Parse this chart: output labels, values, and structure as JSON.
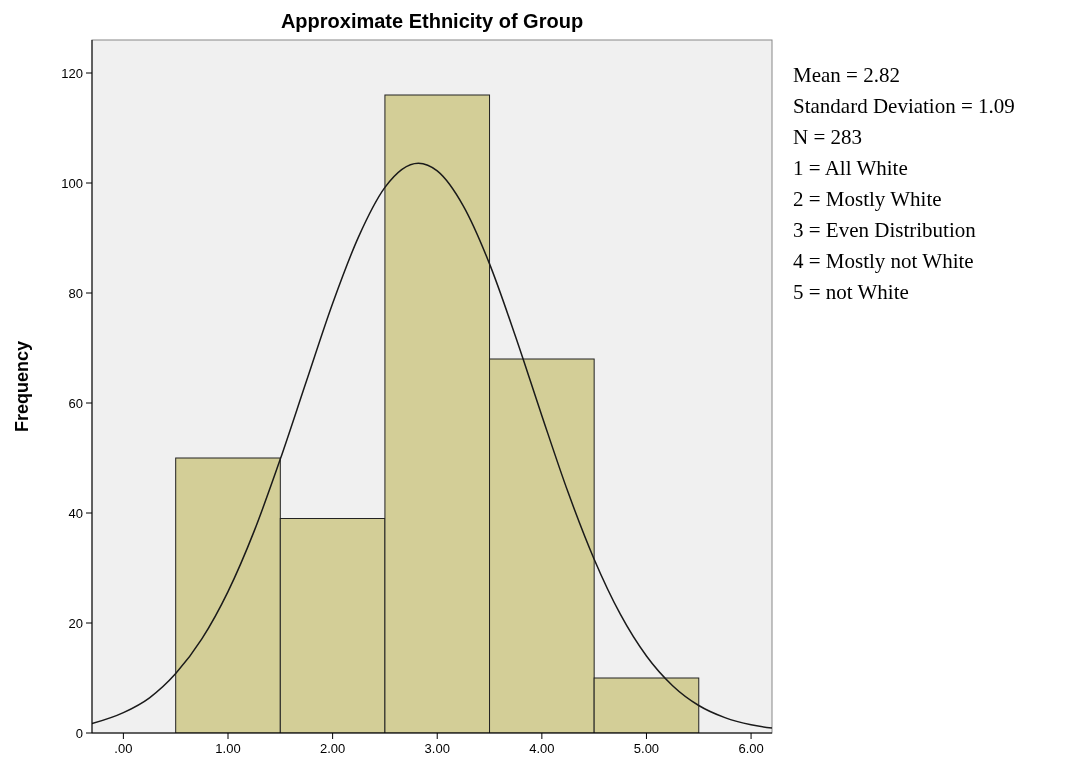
{
  "chart_data": {
    "type": "histogram",
    "title": "Approximate Ethnicity of Group",
    "ylabel": "Frequency",
    "xlim": [
      -0.3,
      6.2
    ],
    "ylim": [
      0,
      126
    ],
    "xticks": [
      {
        "value": 0,
        "label": ".00"
      },
      {
        "value": 1,
        "label": "1.00"
      },
      {
        "value": 2,
        "label": "2.00"
      },
      {
        "value": 3,
        "label": "3.00"
      },
      {
        "value": 4,
        "label": "4.00"
      },
      {
        "value": 5,
        "label": "5.00"
      },
      {
        "value": 6,
        "label": "6.00"
      }
    ],
    "yticks": [
      0,
      20,
      40,
      60,
      80,
      100,
      120
    ],
    "grid": false,
    "color": "#d3ce97",
    "bins": [
      0.5,
      1.5,
      2.5,
      3.5,
      4.5,
      5.5
    ],
    "values": [
      50,
      39,
      116,
      68,
      10
    ],
    "series": [
      {
        "type": "line",
        "color": "#1a1a1a",
        "x": [
          -0.3,
          0,
          0.25,
          0.5,
          0.75,
          1,
          1.25,
          1.5,
          1.75,
          2,
          2.25,
          2.5,
          2.82,
          3,
          3.25,
          3.5,
          3.75,
          4,
          4.25,
          4.5,
          4.75,
          5,
          5.25,
          5.5,
          5.75,
          6,
          6.2
        ],
        "values": [
          1.7,
          3.7,
          6.4,
          10.8,
          17.1,
          25.7,
          36.7,
          49.8,
          64.0,
          78.1,
          90.3,
          99.2,
          103.6,
          102.2,
          95.8,
          85.3,
          72.0,
          57.7,
          43.8,
          31.6,
          21.6,
          14.0,
          8.6,
          5.0,
          2.8,
          1.5,
          0.9
        ]
      }
    ],
    "annotations": [
      "Mean = 2.82",
      "Standard Deviation = 1.09",
      "N = 283",
      "1 = All White",
      "2 = Mostly White",
      "3 = Even Distribution",
      "4 = Mostly not White",
      "5 = not White"
    ]
  }
}
